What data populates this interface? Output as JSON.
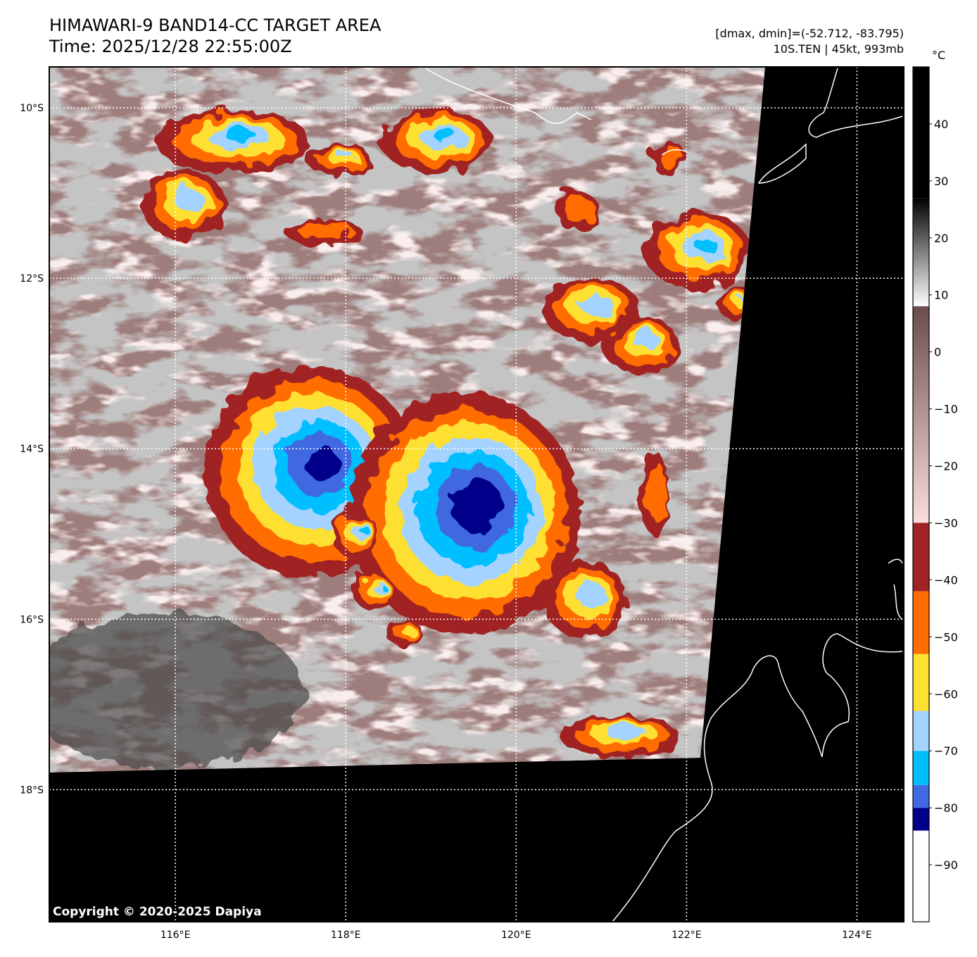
{
  "header": {
    "title": "HIMAWARI-9 BAND14-CC TARGET AREA",
    "time": "Time: 2025/12/28 22:55:00Z",
    "dminmax": "[dmax, dmin]=(-52.712, -83.795)",
    "storm": "10S.TEN | 45kt, 993mb"
  },
  "map": {
    "lon_range": [
      114.52,
      124.55
    ],
    "lat_range": [
      -9.52,
      -19.55
    ],
    "lon_ticks": [
      {
        "value": 116,
        "label": "116°E"
      },
      {
        "value": 118,
        "label": "118°E"
      },
      {
        "value": 120,
        "label": "120°E"
      },
      {
        "value": 122,
        "label": "122°E"
      },
      {
        "value": 124,
        "label": "124°E"
      }
    ],
    "lat_ticks": [
      {
        "value": -10,
        "label": "10°S"
      },
      {
        "value": -12,
        "label": "12°S"
      },
      {
        "value": -14,
        "label": "14°S"
      },
      {
        "value": -16,
        "label": "16°S"
      },
      {
        "value": -18,
        "label": "18°S"
      }
    ],
    "copyright": "Copyright © 2020-2025 Dapiya"
  },
  "colorbar": {
    "unit": "°C",
    "range": [
      -100,
      50
    ],
    "ticks": [
      40,
      30,
      20,
      10,
      0,
      -10,
      -20,
      -30,
      -40,
      -50,
      -60,
      -70,
      -80,
      -90
    ],
    "tick_labels": [
      "40",
      "30",
      "20",
      "10",
      "0",
      "−10",
      "−20",
      "−30",
      "−40",
      "−50",
      "−60",
      "−70",
      "−80",
      "−90"
    ],
    "bands": [
      {
        "from": -100,
        "to": -84,
        "color": "#ffffff"
      },
      {
        "from": -84,
        "to": -80,
        "color": "#00008b"
      },
      {
        "from": -80,
        "to": -76,
        "color": "#4169e1"
      },
      {
        "from": -76,
        "to": -70,
        "color": "#00bfff"
      },
      {
        "from": -70,
        "to": -63,
        "color": "#a4d3ff"
      },
      {
        "from": -63,
        "to": -53,
        "color": "#fde030"
      },
      {
        "from": -53,
        "to": -42,
        "color": "#ff6d00"
      },
      {
        "from": -42,
        "to": -30,
        "color": "#a02424"
      }
    ],
    "gradients": [
      {
        "from": -30,
        "to": 8,
        "color_from": "#fadede",
        "color_to": "#6b4d4b"
      },
      {
        "from": 8,
        "to": 27,
        "color_from": "#ffffff",
        "color_to": "#000000"
      },
      {
        "from": 27,
        "to": 50,
        "color_from": "#000000",
        "color_to": "#000000"
      }
    ]
  }
}
